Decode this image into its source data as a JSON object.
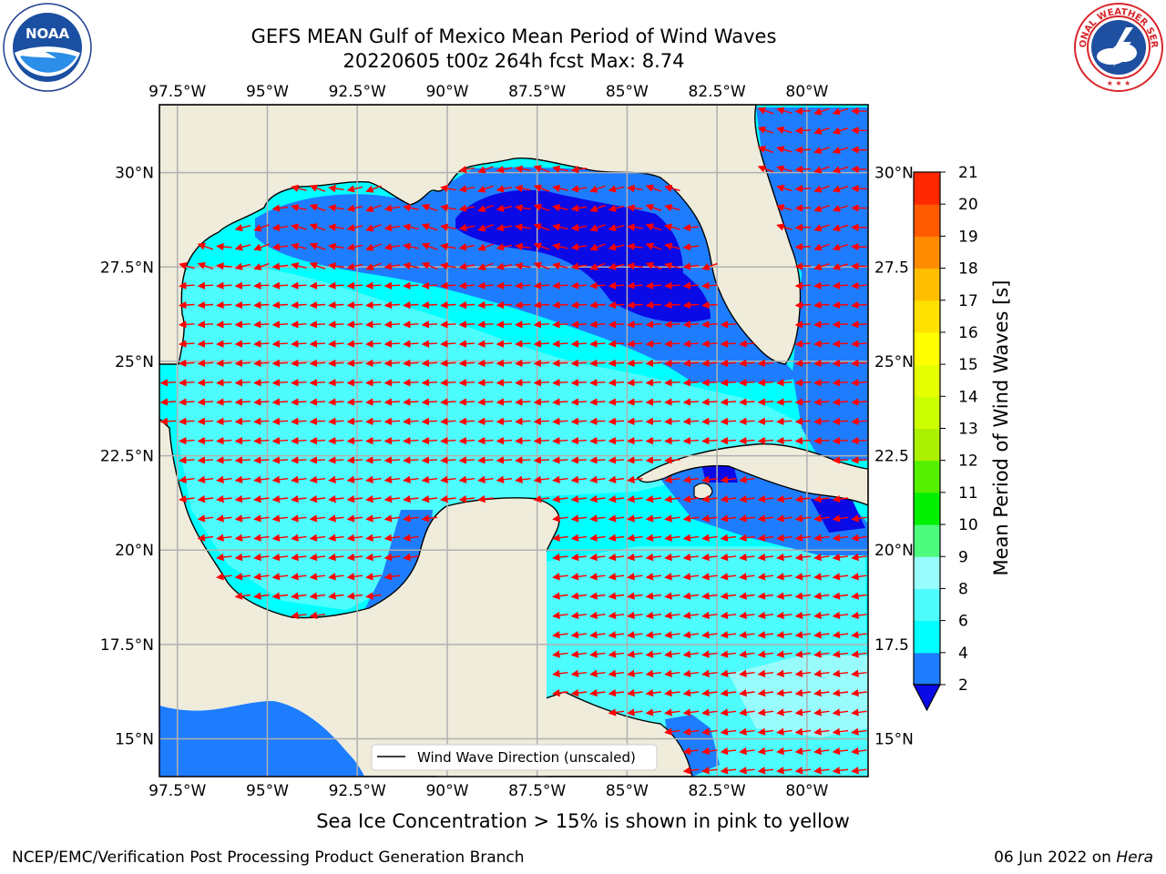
{
  "header": {
    "title_line1": "GEFS MEAN Gulf of Mexico Mean Period of Wind Waves",
    "title_line2": "20220605 t00z 264h fcst   Max: 8.74"
  },
  "logos": {
    "noaa_text": "NOAA",
    "noaa_ring_text": "NATIONAL OCEANIC AND ATMOSPHERIC ADMINISTRATION · U.S. DEPARTMENT OF COMMERCE",
    "nws_ring_text": "NATIONAL WEATHER SERVICE"
  },
  "map": {
    "lon_labels": [
      "97.5°W",
      "95°W",
      "92.5°W",
      "90°W",
      "87.5°W",
      "85°W",
      "82.5°W",
      "80°W"
    ],
    "lon_values": [
      -97.5,
      -95,
      -92.5,
      -90,
      -87.5,
      -85,
      -82.5,
      -80
    ],
    "lat_labels_left": [
      "30°N",
      "27.5°N",
      "25°N",
      "22.5°N",
      "20°N",
      "17.5°N",
      "15°N"
    ],
    "lat_labels_right": [
      "30°N",
      "27.5",
      "25°N",
      "22.5",
      "20°N",
      "17.5",
      "15°N"
    ],
    "lat_values": [
      30,
      27.5,
      25,
      22.5,
      20,
      17.5,
      15
    ],
    "extent": {
      "lon_min": -98,
      "lon_max": -78.3,
      "lat_min": 14,
      "lat_max": 31.8
    },
    "legend_label": "Wind Wave Direction (unscaled)",
    "arrow_direction": "westward",
    "colors": {
      "land": "#efecdc",
      "ocean_2_4": "#1e7dff",
      "ocean_4_6": "#00ffff",
      "ocean_6_8": "#4dfcfc",
      "ocean_low": "#0a0ae6",
      "arrow": "#ff0000",
      "coast": "#000000",
      "grid": "#b0b0b0"
    }
  },
  "colorbar": {
    "label": "Mean Period of Wind Waves [s]",
    "ticks": [
      "2",
      "4",
      "6",
      "8",
      "9",
      "10",
      "11",
      "12",
      "13",
      "14",
      "15",
      "16",
      "17",
      "18",
      "19",
      "20",
      "21"
    ],
    "colors": [
      "#1e7dff",
      "#00ffff",
      "#4dfcfc",
      "#99fcfc",
      "#4dfc7c",
      "#00f000",
      "#55f000",
      "#aaf000",
      "#ccff00",
      "#e6ff00",
      "#ffff00",
      "#ffe100",
      "#ffbf00",
      "#ff8c00",
      "#ff5a00",
      "#ff2800",
      "#0a0ae6"
    ],
    "extend_color": "#0a0ae6"
  },
  "footer": {
    "note": "Sea Ice Concentration > 15% is shown in pink to yellow",
    "credit_left": "NCEP/EMC/Verification Post Processing Product Generation Branch",
    "credit_right_prefix": "06 Jun 2022 on ",
    "credit_right_host": "Hera"
  }
}
